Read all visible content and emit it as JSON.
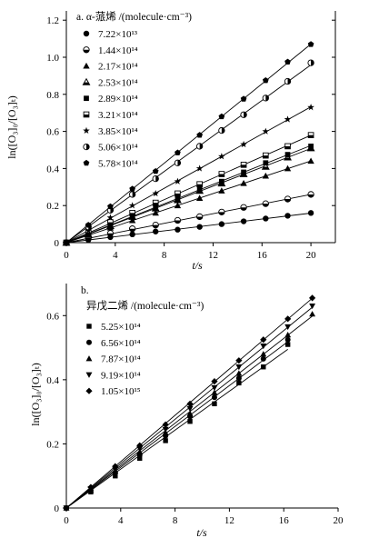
{
  "chart_data": [
    {
      "panel": "a",
      "type": "scatter",
      "legend_title": "a. α-蒎烯 /(molecule·cm⁻³)",
      "xlabel": "t/s",
      "ylabel": "ln([O₃]₀/[O₃]ₜ)",
      "xlim": [
        0,
        22
      ],
      "ylim": [
        0,
        1.25
      ],
      "xticks": [
        0,
        4,
        8,
        12,
        16,
        20
      ],
      "yticks": [
        0,
        0.2,
        0.4,
        0.6,
        0.8,
        1.0,
        1.2
      ],
      "ytick_labels": [
        "0",
        "0.2",
        "0.4",
        "0.6",
        "0.8",
        "1.0",
        "1.2"
      ],
      "grid": false,
      "legend_position": "top-left",
      "series": [
        {
          "name": "7.22×10¹³",
          "marker": "circle-filled",
          "x": [
            0,
            1.8,
            3.6,
            5.4,
            7.3,
            9.1,
            10.9,
            12.7,
            14.5,
            16.3,
            18.1,
            20.0
          ],
          "y": [
            0,
            0.015,
            0.03,
            0.045,
            0.06,
            0.07,
            0.085,
            0.1,
            0.115,
            0.13,
            0.145,
            0.16
          ]
        },
        {
          "name": "1.44×10¹⁴",
          "marker": "circle-half",
          "x": [
            0,
            1.8,
            3.6,
            5.4,
            7.3,
            9.1,
            10.9,
            12.7,
            14.5,
            16.3,
            18.1,
            20.0
          ],
          "y": [
            0,
            0.025,
            0.05,
            0.075,
            0.095,
            0.12,
            0.14,
            0.165,
            0.19,
            0.21,
            0.235,
            0.26
          ]
        },
        {
          "name": "2.17×10¹⁴",
          "marker": "triangle-filled",
          "x": [
            0,
            1.8,
            3.6,
            5.4,
            7.3,
            9.1,
            10.9,
            12.7,
            14.5,
            16.3,
            18.1,
            20.0
          ],
          "y": [
            0,
            0.04,
            0.08,
            0.12,
            0.16,
            0.2,
            0.24,
            0.28,
            0.32,
            0.36,
            0.4,
            0.44
          ]
        },
        {
          "name": "2.53×10¹⁴",
          "marker": "triangle-half",
          "x": [
            0,
            1.8,
            3.6,
            5.4,
            7.3,
            9.1,
            10.9,
            12.7,
            14.5,
            16.3,
            18.1,
            20.0
          ],
          "y": [
            0,
            0.045,
            0.09,
            0.14,
            0.185,
            0.23,
            0.28,
            0.32,
            0.37,
            0.41,
            0.46,
            0.51
          ]
        },
        {
          "name": "2.89×10¹⁴",
          "marker": "square-filled",
          "x": [
            0,
            1.8,
            3.6,
            5.4,
            7.3,
            9.1,
            10.9,
            12.7,
            14.5,
            16.3,
            18.1,
            20.0
          ],
          "y": [
            0,
            0.05,
            0.1,
            0.145,
            0.19,
            0.24,
            0.285,
            0.33,
            0.38,
            0.43,
            0.475,
            0.52
          ]
        },
        {
          "name": "3.21×10¹⁴",
          "marker": "square-half",
          "x": [
            0,
            1.8,
            3.6,
            5.4,
            7.3,
            9.1,
            10.9,
            12.7,
            14.5,
            16.3,
            18.1,
            20.0
          ],
          "y": [
            0,
            0.055,
            0.11,
            0.16,
            0.215,
            0.265,
            0.315,
            0.37,
            0.42,
            0.47,
            0.52,
            0.58
          ]
        },
        {
          "name": "3.85×10¹⁴",
          "marker": "star-filled",
          "x": [
            0,
            1.8,
            3.6,
            5.4,
            7.3,
            9.1,
            10.9,
            12.7,
            14.5,
            16.3,
            18.1,
            20.0
          ],
          "y": [
            0,
            0.065,
            0.135,
            0.2,
            0.265,
            0.33,
            0.4,
            0.465,
            0.53,
            0.6,
            0.665,
            0.73
          ]
        },
        {
          "name": "5.06×10¹⁴",
          "marker": "circle-half-right",
          "x": [
            0,
            1.8,
            3.6,
            5.4,
            7.3,
            9.1,
            10.9,
            12.7,
            14.5,
            16.3,
            18.1,
            20.0
          ],
          "y": [
            0,
            0.085,
            0.175,
            0.26,
            0.345,
            0.43,
            0.52,
            0.605,
            0.69,
            0.78,
            0.87,
            0.97
          ]
        },
        {
          "name": "5.78×10¹⁴",
          "marker": "pentagon-filled",
          "x": [
            0,
            1.8,
            3.6,
            5.4,
            7.3,
            9.1,
            10.9,
            12.7,
            14.5,
            16.3,
            18.1,
            20.0
          ],
          "y": [
            0,
            0.095,
            0.195,
            0.29,
            0.385,
            0.485,
            0.58,
            0.68,
            0.775,
            0.875,
            0.975,
            1.07
          ]
        }
      ]
    },
    {
      "panel": "b",
      "type": "scatter",
      "panel_label": "b.",
      "legend_title": "异戊二烯 /(molecule·cm⁻³)",
      "xlabel": "t/s",
      "ylabel": "ln([O₃]₀/[O₃]ₜ)",
      "xlim": [
        0,
        20
      ],
      "ylim": [
        0,
        0.7
      ],
      "xticks": [
        0,
        4,
        8,
        12,
        16,
        20
      ],
      "yticks": [
        0,
        0.2,
        0.4,
        0.6
      ],
      "ytick_labels": [
        "0",
        "0.2",
        "0.4",
        "0.6"
      ],
      "grid": false,
      "legend_position": "top-left",
      "series": [
        {
          "name": "5.25×10¹⁴",
          "marker": "square-filled",
          "x": [
            0,
            1.8,
            3.6,
            5.4,
            7.3,
            9.1,
            10.9,
            12.7,
            14.5,
            16.3
          ],
          "y": [
            0,
            0.05,
            0.1,
            0.155,
            0.21,
            0.27,
            0.325,
            0.39,
            0.44,
            0.51
          ]
        },
        {
          "name": "6.56×10¹⁴",
          "marker": "circle-filled",
          "x": [
            0,
            1.8,
            3.6,
            5.4,
            7.3,
            9.1,
            10.9,
            12.7,
            14.5,
            16.3
          ],
          "y": [
            0,
            0.055,
            0.11,
            0.165,
            0.225,
            0.285,
            0.345,
            0.405,
            0.465,
            0.525
          ]
        },
        {
          "name": "7.87×10¹⁴",
          "marker": "triangle-up-filled",
          "x": [
            0,
            1.8,
            3.6,
            5.4,
            7.3,
            9.1,
            10.9,
            12.7,
            14.5,
            16.3,
            18.1
          ],
          "y": [
            0,
            0.055,
            0.115,
            0.175,
            0.235,
            0.295,
            0.36,
            0.42,
            0.48,
            0.54,
            0.605
          ]
        },
        {
          "name": "9.19×10¹⁴",
          "marker": "triangle-down-filled",
          "x": [
            0,
            1.8,
            3.6,
            5.4,
            7.3,
            9.1,
            10.9,
            12.7,
            14.5,
            16.3,
            18.1
          ],
          "y": [
            0,
            0.06,
            0.12,
            0.185,
            0.245,
            0.31,
            0.375,
            0.44,
            0.505,
            0.565,
            0.63
          ]
        },
        {
          "name": "1.05×10¹⁵",
          "marker": "diamond-filled",
          "x": [
            0,
            1.8,
            3.6,
            5.4,
            7.3,
            9.1,
            10.9,
            12.7,
            14.5,
            16.3,
            18.1
          ],
          "y": [
            0,
            0.065,
            0.13,
            0.195,
            0.26,
            0.325,
            0.395,
            0.46,
            0.525,
            0.59,
            0.655
          ]
        }
      ]
    }
  ]
}
